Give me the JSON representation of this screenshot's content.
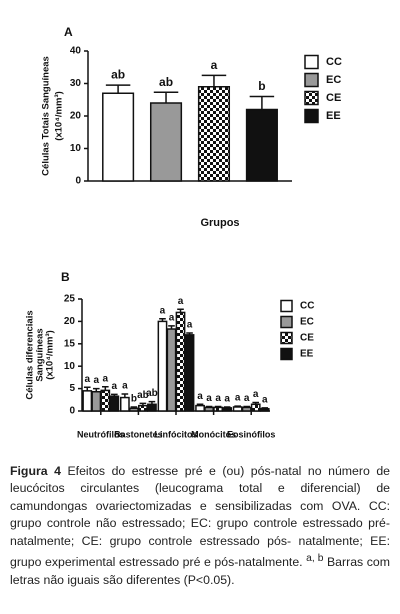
{
  "chart_data": [
    {
      "type": "bar",
      "panel": "A",
      "ylabel": [
        "Células Totais Sanguíneas",
        "(x10⁴/mm³)"
      ],
      "xlabel": "Grupos",
      "categories": [
        null
      ],
      "ylim": [
        0,
        40
      ],
      "yticks": [
        0,
        10,
        20,
        30,
        40
      ],
      "series": [
        {
          "name": "CC",
          "color": "#ffffff",
          "values": [
            27
          ],
          "errors": [
            2.5
          ],
          "letters": [
            "ab"
          ]
        },
        {
          "name": "EC",
          "color": "#999999",
          "values": [
            24
          ],
          "errors": [
            3.3
          ],
          "letters": [
            "ab"
          ]
        },
        {
          "name": "CE",
          "color": "#ffffff",
          "pattern": "checkerboard",
          "values": [
            29
          ],
          "errors": [
            3.5
          ],
          "letters": [
            "a"
          ]
        },
        {
          "name": "EE",
          "color": "#111111",
          "values": [
            22
          ],
          "errors": [
            4
          ],
          "letters": [
            "b"
          ]
        }
      ]
    },
    {
      "type": "bar",
      "panel": "B",
      "ylabel": [
        "Células diferenciais",
        "Sanguíneas",
        "(x10⁴/mm³)"
      ],
      "categories": [
        "Neutrófilos",
        "Bastonetes",
        "Linfócitos",
        "Monócitos",
        "Eosinófilos"
      ],
      "ylim": [
        0,
        25
      ],
      "yticks": [
        0,
        5,
        10,
        15,
        20,
        25
      ],
      "series": [
        {
          "name": "CC",
          "color": "#ffffff",
          "values": [
            4.5,
            3.0,
            20,
            1.2,
            0.9
          ],
          "errors": [
            0.8,
            0.8,
            0.6,
            0.3,
            0.2
          ],
          "letters": [
            "a",
            "a",
            "a",
            "a",
            "a"
          ]
        },
        {
          "name": "EC",
          "color": "#999999",
          "values": [
            4.3,
            0.6,
            18.3,
            0.8,
            0.8
          ],
          "errors": [
            0.7,
            0.3,
            0.7,
            0.2,
            0.2
          ],
          "letters": [
            "a",
            "b",
            "a",
            "a",
            "a"
          ]
        },
        {
          "name": "CE",
          "color": "#ffffff",
          "pattern": "checkerboard",
          "values": [
            4.6,
            1.2,
            22,
            0.8,
            1.5
          ],
          "errors": [
            0.8,
            0.5,
            0.7,
            0.2,
            0.4
          ],
          "letters": [
            "a",
            "ab",
            "a",
            "a",
            "a"
          ]
        },
        {
          "name": "EE",
          "color": "#111111",
          "values": [
            3.3,
            1.5,
            17,
            0.7,
            0.5
          ],
          "errors": [
            0.4,
            0.6,
            0.4,
            0.2,
            0.2
          ],
          "letters": [
            "a",
            "ab",
            "a",
            "a",
            "a"
          ]
        }
      ]
    }
  ],
  "caption": {
    "label": "Figura 4",
    "text": "Efeitos do estresse pré e (ou) pós-natal no número de leucócitos circulantes (leucograma total e diferencial) de camundongas ovariectomizadas e sensibilizadas com OVA. CC: grupo controle não estressado; EC: grupo controle estressado pré-natalmente; CE: grupo controle estressado pós- natalmente; EE: grupo experimental estressado pré e pós-natalmente.",
    "superscript": "a, b",
    "text_end": "Barras com letras não iguais são diferentes (P<0.05)."
  }
}
